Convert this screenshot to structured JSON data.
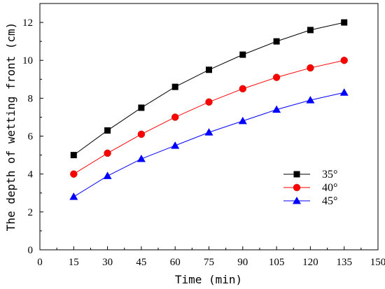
{
  "chart_data": {
    "type": "line",
    "title": "",
    "xlabel": "Time (min)",
    "ylabel": "The depth of wetting front (cm)",
    "xlim": [
      0,
      150
    ],
    "ylim": [
      0,
      13
    ],
    "x_ticks": [
      "0",
      "15",
      "30",
      "45",
      "60",
      "75",
      "90",
      "105",
      "120",
      "135",
      "150"
    ],
    "y_ticks": [
      "0",
      "2",
      "4",
      "6",
      "8",
      "10",
      "12"
    ],
    "grid": false,
    "legend_position": "bottom-right",
    "x": [
      15,
      30,
      45,
      60,
      75,
      90,
      105,
      120,
      135
    ],
    "series": [
      {
        "name": "35°",
        "values": [
          5.0,
          6.3,
          7.5,
          8.6,
          9.5,
          10.3,
          11.0,
          11.6,
          12.0
        ],
        "color": "#000000",
        "marker": "square"
      },
      {
        "name": "40°",
        "values": [
          4.0,
          5.1,
          6.1,
          7.0,
          7.8,
          8.5,
          9.1,
          9.6,
          10.0
        ],
        "color": "#ff0000",
        "marker": "circle"
      },
      {
        "name": "45°",
        "values": [
          2.8,
          3.9,
          4.8,
          5.5,
          6.2,
          6.8,
          7.4,
          7.9,
          8.3
        ],
        "color": "#0000ff",
        "marker": "triangle"
      }
    ]
  }
}
